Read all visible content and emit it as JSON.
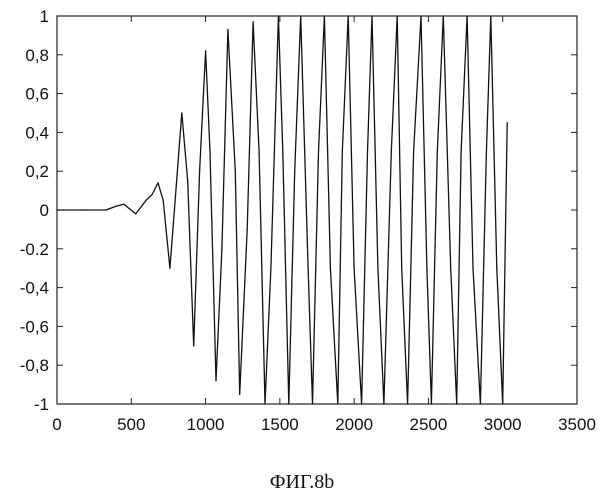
{
  "chart_data": {
    "type": "line",
    "title": "",
    "xlabel": "",
    "ylabel": "",
    "xlim": [
      0,
      3500
    ],
    "ylim": [
      -1,
      1
    ],
    "x_ticks": [
      0,
      500,
      1000,
      1500,
      2000,
      2500,
      3000,
      3500
    ],
    "y_ticks": [
      1,
      0.8,
      0.6,
      0.4,
      0.2,
      0,
      -0.2,
      -0.4,
      -0.6,
      -0.8,
      -1
    ],
    "x_tick_labels": [
      "0",
      "500",
      "1000",
      "1500",
      "2000",
      "2500",
      "3000",
      "3500"
    ],
    "y_tick_labels": [
      "1",
      "0,8",
      "0,6",
      "0,4",
      "0,2",
      "0",
      "-0.2",
      "-0,4",
      "-0,6",
      "-0,8",
      "-1"
    ],
    "grid": false,
    "line_color": "#111111",
    "series": [
      {
        "x": [
          0,
          200,
          330,
          400,
          450,
          530,
          600,
          640,
          680,
          715,
          760,
          800,
          840,
          880,
          920,
          960,
          1000,
          1030,
          1070,
          1110,
          1150,
          1200,
          1230,
          1280,
          1320,
          1360,
          1400,
          1440,
          1490,
          1520,
          1560,
          1600,
          1640,
          1690,
          1720,
          1760,
          1800,
          1840,
          1890,
          1920,
          1960,
          2000,
          2050,
          2090,
          2120,
          2160,
          2200,
          2250,
          2290,
          2320,
          2360,
          2400,
          2450,
          2490,
          2520,
          2560,
          2600,
          2650,
          2690,
          2720,
          2760,
          2800,
          2850,
          2890,
          2920,
          2960,
          3000,
          3030
        ],
        "y": [
          0,
          0,
          0,
          0.02,
          0.03,
          -0.02,
          0.05,
          0.08,
          0.14,
          0.05,
          -0.3,
          0.1,
          0.5,
          0.15,
          -0.7,
          0.2,
          0.82,
          0.3,
          -0.88,
          -0.2,
          0.93,
          0.2,
          -0.95,
          -0.1,
          0.97,
          0.3,
          -1,
          -0.3,
          1,
          0.3,
          -1,
          0.2,
          1,
          -0.3,
          -1,
          0.3,
          1,
          -0.3,
          -1,
          0.3,
          1,
          -0.3,
          -1,
          0.3,
          1,
          -0.3,
          -1,
          0.3,
          1,
          -0.3,
          -1,
          0.3,
          1,
          -0.3,
          -1,
          0.3,
          1,
          -0.3,
          -1,
          0.3,
          1,
          -0.3,
          -1,
          0.3,
          1,
          -0.3,
          -1,
          0.45
        ]
      }
    ]
  },
  "caption": "ФИГ.8b"
}
